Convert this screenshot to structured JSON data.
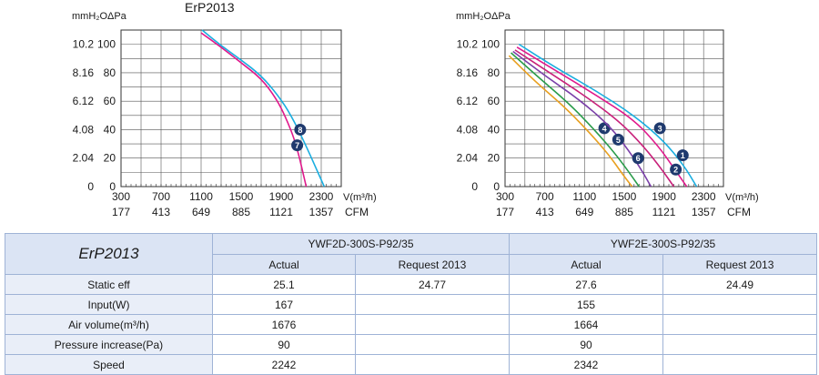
{
  "chart_data": [
    {
      "type": "line",
      "title": "ErP2013",
      "y_unit_left": "mmH₂O",
      "y_unit_right": "ΔPa",
      "y_ticks_mmh2o": [
        "10.2",
        "8.16",
        "6.12",
        "4.08",
        "2.04",
        "0"
      ],
      "y_ticks_pa": [
        "100",
        "80",
        "60",
        "40",
        "20",
        "0"
      ],
      "ylim": [
        0,
        110
      ],
      "x_unit": "V(m³/h)",
      "x_unit2": "CFM",
      "x_ticks": [
        "300",
        "700",
        "1100",
        "1500",
        "1900",
        "2300"
      ],
      "x_ticks_cfm": [
        "177",
        "413",
        "649",
        "885",
        "1121",
        "1357"
      ],
      "xlim": [
        300,
        2500
      ],
      "grid": true,
      "series": [
        {
          "label": "7",
          "color": "#e0198c",
          "marker": {
            "x": 2060,
            "y": 29
          },
          "x": [
            1100,
            1300,
            1500,
            1700,
            1850,
            1950,
            2050,
            2150
          ],
          "y": [
            108,
            98,
            87,
            76,
            62,
            48,
            30,
            0
          ]
        },
        {
          "label": "8",
          "color": "#1aaee0",
          "marker": {
            "x": 2090,
            "y": 40
          },
          "x": [
            1110,
            1300,
            1500,
            1700,
            1870,
            2000,
            2140,
            2330
          ],
          "y": [
            110,
            99,
            89,
            78,
            64,
            50,
            30,
            0
          ]
        }
      ]
    },
    {
      "type": "line",
      "y_unit_left": "mmH₂O",
      "y_unit_right": "ΔPa",
      "y_ticks_mmh2o": [
        "10.2",
        "8.16",
        "6.12",
        "4.08",
        "2.04",
        "0"
      ],
      "y_ticks_pa": [
        "100",
        "80",
        "60",
        "40",
        "20",
        "0"
      ],
      "ylim": [
        0,
        110
      ],
      "x_unit": "V(m³/h)",
      "x_unit2": "CFM",
      "x_ticks": [
        "300",
        "700",
        "1100",
        "1500",
        "1900",
        "2300"
      ],
      "x_ticks_cfm": [
        "177",
        "413",
        "649",
        "885",
        "1121",
        "1357"
      ],
      "xlim": [
        300,
        2500
      ],
      "grid": true,
      "series": [
        {
          "label": "1",
          "color": "#1aaee0",
          "marker": {
            "x": 2090,
            "y": 22
          },
          "x": [
            440,
            800,
            1200,
            1600,
            1900,
            2100,
            2230
          ],
          "y": [
            100,
            84,
            68,
            50,
            32,
            15,
            0
          ]
        },
        {
          "label": "2",
          "color": "#e0198c",
          "marker": {
            "x": 2020,
            "y": 12
          },
          "x": [
            420,
            800,
            1200,
            1600,
            1850,
            2000,
            2130
          ],
          "y": [
            98,
            82,
            65,
            47,
            28,
            13,
            0
          ]
        },
        {
          "label": "3",
          "color": "#c8207a",
          "marker": {
            "x": 1860,
            "y": 41
          },
          "x": [
            400,
            750,
            1100,
            1450,
            1700,
            1880,
            2000
          ],
          "y": [
            96,
            80,
            64,
            46,
            28,
            12,
            0
          ]
        },
        {
          "label": "4",
          "color": "#2a9c4a",
          "marker": {
            "x": 1300,
            "y": 41
          },
          "x": [
            360,
            650,
            950,
            1200,
            1400,
            1550,
            1650
          ],
          "y": [
            94,
            76,
            58,
            40,
            24,
            10,
            0
          ]
        },
        {
          "label": "5",
          "color": "#7a3fa8",
          "marker": {
            "x": 1440,
            "y": 33
          },
          "x": [
            380,
            700,
            1050,
            1350,
            1550,
            1680,
            1770
          ],
          "y": [
            95,
            78,
            61,
            43,
            25,
            11,
            0
          ]
        },
        {
          "label": "6",
          "color": "#e8a020",
          "marker": {
            "x": 1640,
            "y": 20
          },
          "x": [
            340,
            600,
            900,
            1150,
            1350,
            1480,
            1580
          ],
          "y": [
            92,
            74,
            56,
            38,
            22,
            9,
            0
          ]
        }
      ]
    }
  ],
  "table": {
    "brand": "ErP2013",
    "models": [
      "YWF2D-300S-P92/35",
      "YWF2E-300S-P92/35"
    ],
    "subheaders": [
      "Actual",
      "Request 2013",
      "Actual",
      "Request 2013"
    ],
    "rows": [
      {
        "label": "Static eff",
        "values": [
          "25.1",
          "24.77",
          "27.6",
          "24.49"
        ]
      },
      {
        "label": "Input(W)",
        "values": [
          "167",
          "",
          "155",
          ""
        ]
      },
      {
        "label": "Air volume(m³/h)",
        "values": [
          "1676",
          "",
          "1664",
          ""
        ]
      },
      {
        "label": "Pressure increase(Pa)",
        "values": [
          "90",
          "",
          "90",
          ""
        ]
      },
      {
        "label": "Speed",
        "values": [
          "2242",
          "",
          "2342",
          ""
        ]
      }
    ]
  }
}
